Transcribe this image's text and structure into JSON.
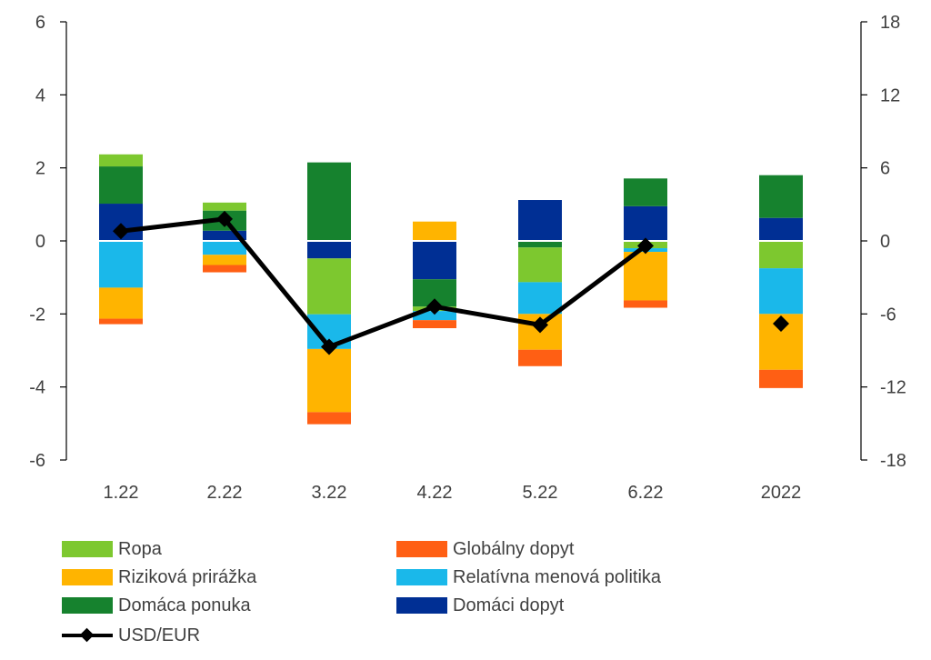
{
  "chart_data": {
    "type": "bar",
    "stacked": true,
    "categories": [
      "1.22",
      "2.22",
      "3.22",
      "4.22",
      "5.22",
      "6.22",
      "2022"
    ],
    "y_left": {
      "min": -6,
      "max": 6,
      "ticks": [
        6,
        4,
        2,
        0,
        -2,
        -4,
        -6
      ]
    },
    "y_right": {
      "min": -18,
      "max": 18,
      "ticks": [
        18,
        12,
        6,
        0,
        -6,
        -12,
        -18
      ]
    },
    "series": [
      {
        "name": "Domáci dopyt",
        "color": "#002F94",
        "values": [
          1.02,
          0.28,
          -0.48,
          -1.05,
          1.12,
          0.95,
          0.63
        ]
      },
      {
        "name": "Domáca ponuka",
        "color": "#16822E",
        "values": [
          1.02,
          0.55,
          2.15,
          -0.75,
          -0.18,
          0.76,
          1.17
        ]
      },
      {
        "name": "Ropa",
        "color": "#7DC82F",
        "values": [
          0.33,
          0.22,
          -1.53,
          -0.12,
          -0.95,
          -0.2,
          -0.75
        ]
      },
      {
        "name": "Relatívna menová politika",
        "color": "#1AB8EA",
        "values": [
          -1.28,
          -0.38,
          -0.95,
          -0.25,
          -0.87,
          -0.1,
          -1.25
        ]
      },
      {
        "name": "Riziková prirážka",
        "color": "#FFB400",
        "values": [
          -0.85,
          -0.28,
          -1.73,
          0.53,
          -0.98,
          -1.33,
          -1.53
        ]
      },
      {
        "name": "Globálny dopyt",
        "color": "#FF5F14",
        "values": [
          -0.15,
          -0.2,
          -0.33,
          -0.22,
          -0.45,
          -0.2,
          -0.5
        ]
      }
    ],
    "line_series": {
      "name": "USD/EUR",
      "color": "#000000",
      "axis": "right",
      "values": [
        0.8,
        1.8,
        -8.7,
        -5.4,
        -6.9,
        -0.4,
        -6.8
      ],
      "connected_points": 6
    },
    "grid": false,
    "legend_position": "bottom"
  },
  "legend": {
    "items": [
      {
        "label": "Ropa",
        "color": "#7DC82F",
        "kind": "box"
      },
      {
        "label": "Globálny dopyt",
        "color": "#FF5F14",
        "kind": "box"
      },
      {
        "label": "Riziková prirážka",
        "color": "#FFB400",
        "kind": "box"
      },
      {
        "label": "Relatívna menová politika",
        "color": "#1AB8EA",
        "kind": "box"
      },
      {
        "label": "Domáca ponuka",
        "color": "#16822E",
        "kind": "box"
      },
      {
        "label": "Domáci dopyt",
        "color": "#002F94",
        "kind": "box"
      },
      {
        "label": "USD/EUR",
        "color": "#000000",
        "kind": "line"
      }
    ]
  }
}
